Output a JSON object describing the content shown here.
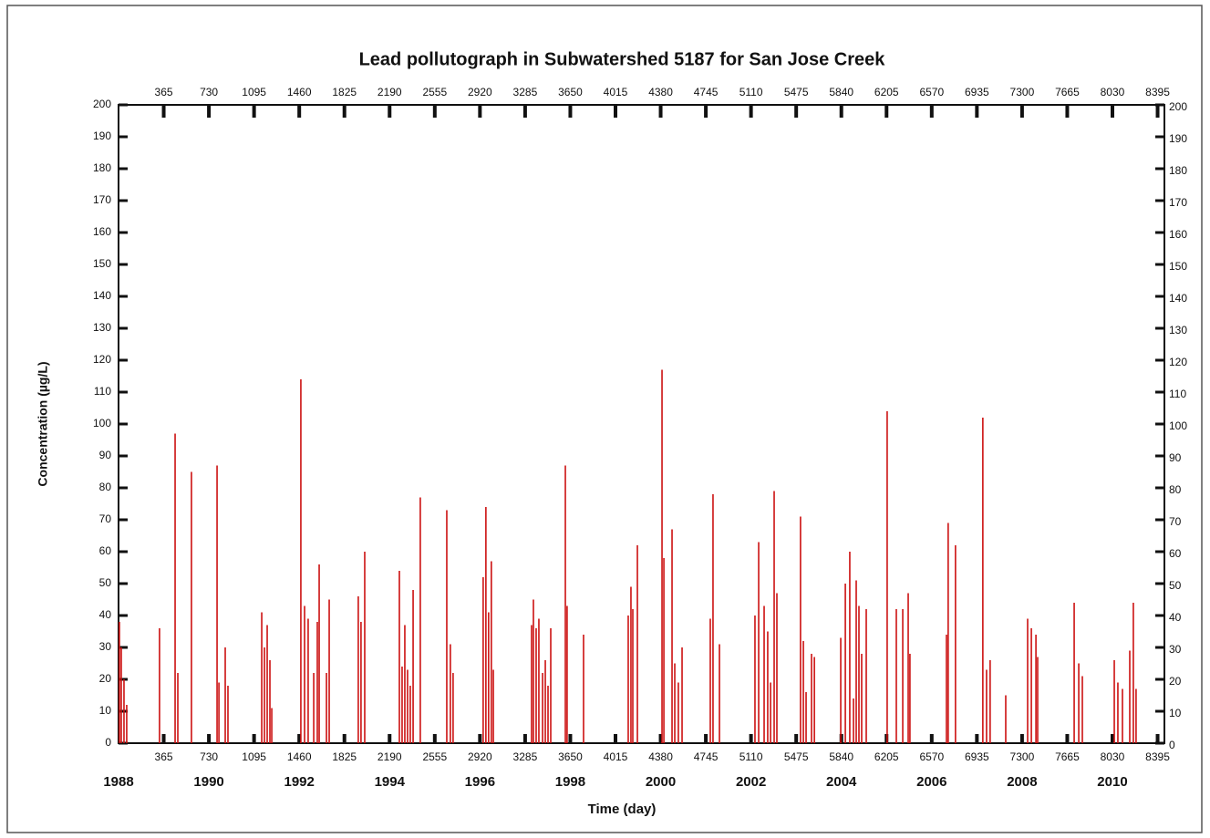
{
  "chart_data": {
    "type": "spike",
    "title": "Lead  pollutograph in Subwatershed 5187 for San Jose Creek",
    "xlabel": "Time (day)",
    "ylabel": "Concentration (µg/L)",
    "color": "#cc1111",
    "x": [
      7,
      22,
      44,
      66,
      331,
      457,
      479,
      589,
      796,
      811,
      862,
      884,
      1157,
      1179,
      1201,
      1223,
      1238,
      1473,
      1503,
      1532,
      1577,
      1606,
      1621,
      1680,
      1702,
      1937,
      1959,
      1989,
      2269,
      2291,
      2313,
      2335,
      2357,
      2380,
      2438,
      2652,
      2681,
      2703,
      2946,
      2968,
      2990,
      3012,
      3028,
      3337,
      3352,
      3374,
      3396,
      3426,
      3448,
      3470,
      3492,
      3610,
      3624,
      3757,
      4118,
      4140,
      4155,
      4192,
      4391,
      4406,
      4472,
      4494,
      4523,
      4553,
      4781,
      4803,
      4855,
      5142,
      5172,
      5216,
      5245,
      5268,
      5297,
      5319,
      5510,
      5533,
      5555,
      5599,
      5622,
      5835,
      5872,
      5908,
      5938,
      5960,
      5982,
      6004,
      6041,
      6210,
      6284,
      6336,
      6380,
      6394,
      6689,
      6703,
      6762,
      6983,
      7013,
      7042,
      7168,
      7345,
      7375,
      7412,
      7426,
      7721,
      7758,
      7787,
      8045,
      8074,
      8111,
      8170,
      8199,
      8221
    ],
    "values": [
      38,
      30,
      20,
      12,
      36,
      97,
      22,
      85,
      87,
      19,
      30,
      18,
      41,
      30,
      37,
      26,
      11,
      114,
      43,
      39,
      22,
      38,
      56,
      22,
      45,
      46,
      38,
      60,
      54,
      24,
      37,
      23,
      18,
      48,
      77,
      73,
      31,
      22,
      52,
      74,
      41,
      57,
      23,
      37,
      45,
      36,
      39,
      22,
      26,
      18,
      36,
      87,
      43,
      34,
      40,
      49,
      42,
      62,
      117,
      58,
      67,
      25,
      19,
      30,
      39,
      78,
      31,
      40,
      63,
      43,
      35,
      19,
      79,
      47,
      71,
      32,
      16,
      28,
      27,
      33,
      50,
      60,
      14,
      51,
      43,
      28,
      42,
      104,
      42,
      42,
      47,
      28,
      34,
      69,
      62,
      102,
      23,
      26,
      15,
      39,
      36,
      34,
      27,
      44,
      25,
      21,
      26,
      19,
      17,
      29,
      44,
      17
    ],
    "xlim": [
      0,
      8450
    ],
    "ylim": [
      0,
      200
    ],
    "xticks": [
      365,
      730,
      1095,
      1460,
      1825,
      2190,
      2555,
      2920,
      3285,
      3650,
      4015,
      4380,
      4745,
      5110,
      5475,
      5840,
      6205,
      6570,
      6935,
      7300,
      7665,
      8030,
      8395
    ],
    "yticks": [
      0,
      10,
      20,
      30,
      40,
      50,
      60,
      70,
      80,
      90,
      100,
      110,
      120,
      130,
      140,
      150,
      160,
      170,
      180,
      190,
      200
    ],
    "year_ticks": [
      {
        "value": 0,
        "label": "1988"
      },
      {
        "value": 730,
        "label": "1990"
      },
      {
        "value": 1460,
        "label": "1992"
      },
      {
        "value": 2190,
        "label": "1994"
      },
      {
        "value": 2920,
        "label": "1996"
      },
      {
        "value": 3650,
        "label": "1998"
      },
      {
        "value": 4380,
        "label": "2000"
      },
      {
        "value": 5110,
        "label": "2002"
      },
      {
        "value": 5840,
        "label": "2004"
      },
      {
        "value": 6570,
        "label": "2006"
      },
      {
        "value": 7300,
        "label": "2008"
      },
      {
        "value": 8030,
        "label": "2010"
      }
    ]
  }
}
